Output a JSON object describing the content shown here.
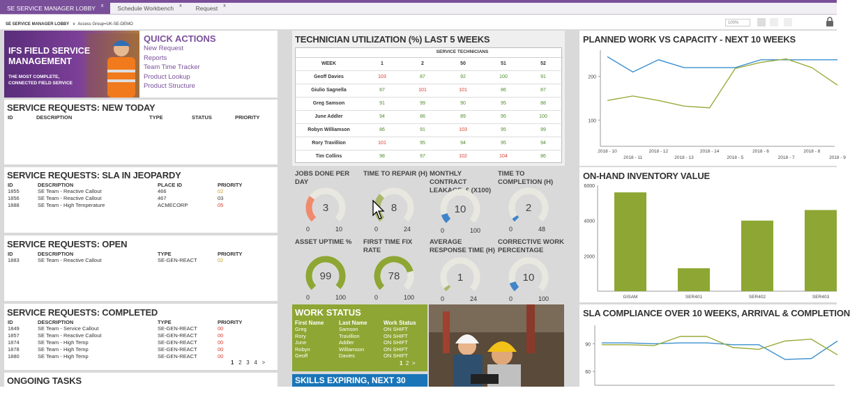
{
  "tabs": [
    {
      "label": "SE SERVICE MANAGER LOBBY",
      "close": "x"
    },
    {
      "label": "Schedule Workbench",
      "close": "x"
    },
    {
      "label": "Request",
      "close": "x"
    }
  ],
  "breadcrumb": {
    "lobby": "SE SERVICE MANAGER LOBBY",
    "group": "Access Group=UK-SE-DEMO"
  },
  "toolbar": {
    "zoom": "100%"
  },
  "promo": {
    "title": "IFS FIELD SERVICE MANAGEMENT",
    "subtitle_line1": "THE MOST COMPLETE,",
    "subtitle_line2": "CONNECTED FIELD SERVICE"
  },
  "quick_actions": {
    "title": "QUICK ACTIONS",
    "links": [
      "New Request",
      "Reports",
      "Team Time Tracker",
      "Product Lookup",
      "Product Structure"
    ]
  },
  "new_today": {
    "title": "SERVICE REQUESTS: NEW TODAY",
    "headers": [
      "ID",
      "DESCRIPTION",
      "TYPE",
      "STATUS",
      "PRIORITY"
    ]
  },
  "sla_jeopardy": {
    "title": "SERVICE REQUESTS: SLA IN JEOPARDY",
    "headers": [
      "ID",
      "DESCRIPTION",
      "PLACE ID",
      "PRIORITY"
    ],
    "rows": [
      {
        "id": "1855",
        "desc": "SE Team - Reactive Callout",
        "place": "466",
        "priority": "02"
      },
      {
        "id": "1856",
        "desc": "SE Team - Reactive Callout",
        "place": "467",
        "priority": "03"
      },
      {
        "id": "1888",
        "desc": "SE Team - High Temperature",
        "place": "ACMECORP",
        "priority": "05"
      }
    ]
  },
  "open": {
    "title": "SERVICE REQUESTS: OPEN",
    "headers": [
      "ID",
      "DESCRIPTION",
      "TYPE",
      "PRIORITY"
    ],
    "rows": [
      {
        "id": "1883",
        "desc": "SE Team - Reactive Callout",
        "type": "SE-GEN-REACT",
        "priority": "02"
      }
    ]
  },
  "completed": {
    "title": "SERVICE REQUESTS: COMPLETED",
    "headers": [
      "ID",
      "DESCRIPTION",
      "TYPE",
      "PRIORITY"
    ],
    "rows": [
      {
        "id": "1849",
        "desc": "SE Team - Service Callout",
        "type": "SE-GEN-REACT",
        "priority": "00"
      },
      {
        "id": "1857",
        "desc": "SE Team - Reactive Callout",
        "type": "SE-GEN-REACT",
        "priority": "00"
      },
      {
        "id": "1874",
        "desc": "SE Team - High Temp",
        "type": "SE-GEN-REACT",
        "priority": "00"
      },
      {
        "id": "1878",
        "desc": "SE Team - High Temp",
        "type": "SE-GEN-REACT",
        "priority": "00"
      },
      {
        "id": "1880",
        "desc": "SE Team - High Temp",
        "type": "SE-GEN-REACT",
        "priority": "00"
      }
    ],
    "pages": [
      "1",
      "2",
      "3",
      "4",
      ">"
    ]
  },
  "ongoing": {
    "title": "ONGOING TASKS"
  },
  "utilization": {
    "title": "TECHNICIAN UTILIZATION (%) LAST 5 WEEKS",
    "group_header": "SERVICE TECHNICIANS",
    "week_label": "WEEK",
    "weeks": [
      "1",
      "2",
      "50",
      "51",
      "52"
    ],
    "rows": [
      {
        "name": "Geoff Davies",
        "vals": [
          "103",
          "87",
          "92",
          "100",
          "91"
        ]
      },
      {
        "name": "Giulio Sagnella",
        "vals": [
          "87",
          "101",
          "101",
          "86",
          "87"
        ]
      },
      {
        "name": "Greg Samson",
        "vals": [
          "91",
          "99",
          "90",
          "95",
          "88"
        ]
      },
      {
        "name": "June Addler",
        "vals": [
          "94",
          "86",
          "89",
          "95",
          "100"
        ]
      },
      {
        "name": "Robyn Williamson",
        "vals": [
          "86",
          "91",
          "103",
          "95",
          "99"
        ]
      },
      {
        "name": "Rory Travillion",
        "vals": [
          "101",
          "95",
          "94",
          "95",
          "94"
        ]
      },
      {
        "name": "Tim Collins",
        "vals": [
          "98",
          "97",
          "102",
          "104",
          "86"
        ]
      }
    ]
  },
  "gauges": [
    {
      "title": "JOBS DONE PER DAY",
      "value": "3",
      "min": "0",
      "max": "10",
      "fraction": 0.3,
      "color": "#f08a6c"
    },
    {
      "title": "TIME TO REPAIR (H)",
      "value": "8",
      "min": "0",
      "max": "24",
      "fraction": 0.33,
      "color": "#a9b86b"
    },
    {
      "title": "MONTHLY CONTRACT LEAKAGE, £ (X100)",
      "value": "10",
      "min": "0",
      "max": "100",
      "fraction": 0.1,
      "color": "#3f85c8"
    },
    {
      "title": "TIME TO COMPLETION (H)",
      "value": "2",
      "min": "0",
      "max": "48",
      "fraction": 0.04,
      "color": "#3f85c8"
    },
    {
      "title": "ASSET UPTIME %",
      "value": "99",
      "min": "0",
      "max": "100",
      "fraction": 0.99,
      "color": "#8ea633"
    },
    {
      "title": "FIRST TIME FIX RATE",
      "value": "78",
      "min": "0",
      "max": "100",
      "fraction": 0.78,
      "color": "#8ea633"
    },
    {
      "title": "AVERAGE RESPONSE TIME (H)",
      "value": "1",
      "min": "0",
      "max": "24",
      "fraction": 0.04,
      "color": "#a9b86b"
    },
    {
      "title": "CORRECTIVE WORK PERCENTAGE",
      "value": "10",
      "min": "0",
      "max": "100",
      "fraction": 0.1,
      "color": "#3f85c8"
    }
  ],
  "work_status": {
    "title": "WORK STATUS",
    "headers": [
      "First Name",
      "Last Name",
      "Work Status"
    ],
    "rows": [
      [
        "Greg",
        "Samson",
        "ON SHIFT"
      ],
      [
        "Rory",
        "Travillion",
        "ON SHIFT"
      ],
      [
        "June",
        "Addler",
        "ON SHIFT"
      ],
      [
        "Robyn",
        "Williamson",
        "ON SHIFT"
      ],
      [
        "Geoff",
        "Davies",
        "ON SHIFT"
      ]
    ],
    "pages": [
      "1",
      "2",
      ">"
    ]
  },
  "skills": {
    "title": "SKILLS EXPIRING, NEXT 30 DAYS"
  },
  "chart_data": [
    {
      "type": "line",
      "title": "PLANNED WORK VS CAPACITY - NEXT 10 WEEKS",
      "x": [
        "2018 - 10",
        "2018 - 11",
        "2018 - 12",
        "2018 - 13",
        "2018 - 14",
        "2018 - 5",
        "2018 - 6",
        "2018 - 7",
        "2018 - 8",
        "2018 - 9"
      ],
      "yticks": [
        "100",
        "200"
      ],
      "ylim": [
        40,
        260
      ],
      "series": [
        {
          "color": "#3a8fcf",
          "values": [
            245,
            210,
            238,
            220,
            220,
            220,
            238,
            238,
            238,
            238
          ]
        },
        {
          "color": "#9aaa3a",
          "values": [
            145,
            155,
            145,
            132,
            128,
            218,
            232,
            240,
            220,
            180
          ]
        }
      ]
    },
    {
      "type": "bar",
      "title": "ON-HAND INVENTORY VALUE",
      "categories": [
        "GISAM",
        "SER401",
        "SER402",
        "SER403"
      ],
      "values": [
        5600,
        1300,
        4000,
        4600
      ],
      "yticks": [
        "2000",
        "4000",
        "6000"
      ],
      "ylim": [
        0,
        6000
      ],
      "color": "#8ea633"
    },
    {
      "type": "line",
      "title": "SLA COMPLIANCE OVER 10 WEEKS, ARRIVAL & COMPLETION",
      "yticks": [
        "60",
        "90"
      ],
      "ylim": [
        45,
        110
      ],
      "series": [
        {
          "color": "#3a8fcf",
          "values": [
            91,
            91,
            90,
            91,
            91,
            89,
            89,
            73,
            74,
            93
          ]
        },
        {
          "color": "#9aaa3a",
          "values": [
            89,
            89,
            88,
            98,
            98,
            86,
            84,
            93,
            95,
            78
          ]
        }
      ]
    }
  ]
}
